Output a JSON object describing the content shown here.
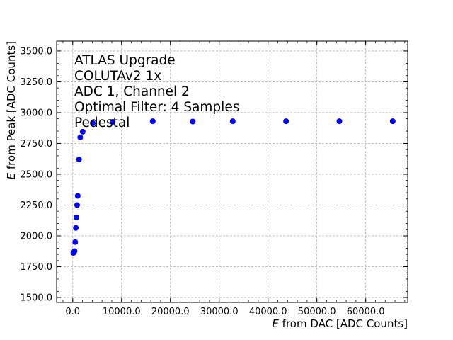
{
  "chart_data": {
    "type": "scatter",
    "xlabel": {
      "italic": "E",
      "rest": " from DAC [ADC Counts]"
    },
    "ylabel": {
      "italic": "E",
      "rest": " from Peak [ADC Counts]"
    },
    "xlim": [
      -3300,
      68600
    ],
    "ylim": [
      1460,
      3580
    ],
    "xticks": [
      0,
      10000,
      20000,
      30000,
      40000,
      50000,
      60000
    ],
    "xtick_labels": [
      "0.0",
      "10000.0",
      "20000.0",
      "30000.0",
      "40000.0",
      "50000.0",
      "60000.0"
    ],
    "yticks": [
      1500,
      1750,
      2000,
      2250,
      2500,
      2750,
      3000,
      3250,
      3500
    ],
    "ytick_labels": [
      "1500.0",
      "1750.0",
      "2000.0",
      "2250.0",
      "2500.0",
      "2750.0",
      "3000.0",
      "3250.0",
      "3500.0"
    ],
    "grid": true,
    "marker_color": "#0000ff",
    "annotations": [
      "ATLAS Upgrade",
      "COLUTAv2 1x",
      "ADC 1, Channel 2",
      "Optimal Filter: 4 Samples",
      "Pedestal"
    ],
    "series": [
      {
        "x": [
          128,
          256,
          384,
          512,
          640,
          768,
          896,
          1024,
          1280,
          1536,
          2048,
          4096,
          8192,
          16384,
          24576,
          32768,
          43690,
          54613,
          65535
        ],
        "y": [
          1862,
          1868,
          1876,
          1950,
          2065,
          2150,
          2250,
          2325,
          2620,
          2800,
          2845,
          2915,
          2925,
          2930,
          2928,
          2930,
          2930,
          2930,
          2930
        ]
      }
    ]
  }
}
